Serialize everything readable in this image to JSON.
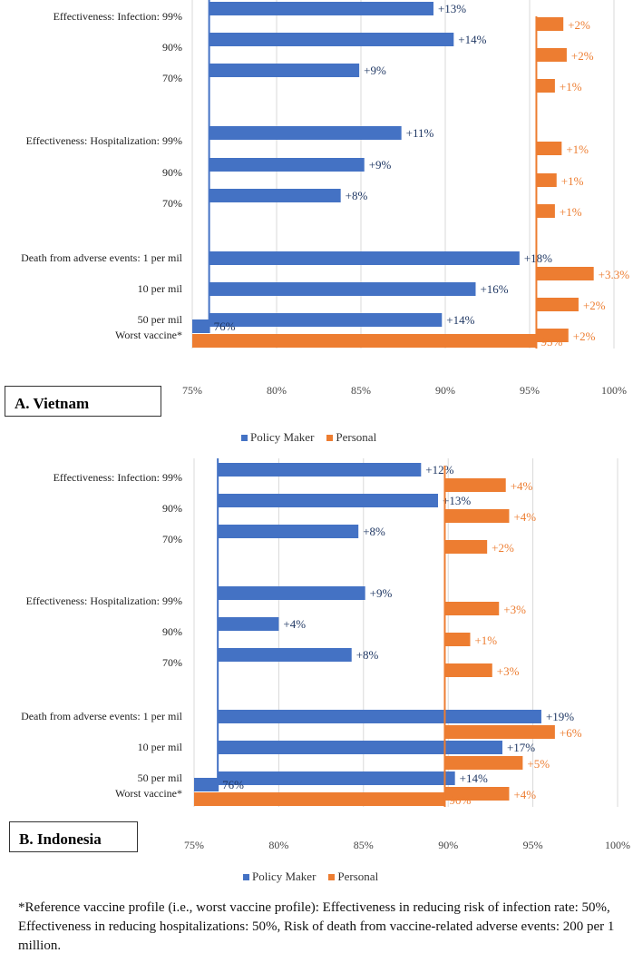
{
  "colors": {
    "policy_maker": "#4472C4",
    "personal": "#ED7D31",
    "pm_label": "#203864",
    "grid": "#D9D9D9"
  },
  "chart_data": [
    {
      "type": "bar",
      "orientation": "horizontal",
      "title": "A. Vietnam",
      "xlim": [
        75,
        100
      ],
      "xticks": [
        "75%",
        "80%",
        "85%",
        "90%",
        "95%",
        "100%"
      ],
      "legend": [
        "Policy Maker",
        "Personal"
      ],
      "legend_position": "bottom",
      "base": {
        "policy_maker": 76,
        "personal": 95.4
      },
      "rows": [
        {
          "category": "Effectiveness: Infection: 99%",
          "policy_maker": 89.3,
          "pm_label": "+13%",
          "personal": 97.0,
          "personal_label": "+2%"
        },
        {
          "category": "90%",
          "policy_maker": 90.5,
          "pm_label": "+14%",
          "personal": 97.2,
          "personal_label": "+2%"
        },
        {
          "category": "70%",
          "policy_maker": 84.9,
          "pm_label": "+9%",
          "personal": 96.5,
          "personal_label": "+1%"
        },
        {
          "category": "Effectiveness: Hospitalization: 99%",
          "policy_maker": 87.4,
          "pm_label": "+11%",
          "personal": 96.9,
          "personal_label": "+1%"
        },
        {
          "category": "90%",
          "policy_maker": 85.2,
          "pm_label": "+9%",
          "personal": 96.6,
          "personal_label": "+1%"
        },
        {
          "category": "70%",
          "policy_maker": 83.8,
          "pm_label": "+8%",
          "personal": 96.5,
          "personal_label": "+1%"
        },
        {
          "category": "Death from adverse events: 1 per mil",
          "policy_maker": 94.4,
          "pm_label": "+18%",
          "personal": 98.8,
          "personal_label": "+3.3%"
        },
        {
          "category": "10 per mil",
          "policy_maker": 91.8,
          "pm_label": "+16%",
          "personal": 97.9,
          "personal_label": "+2%"
        },
        {
          "category": "50 per mil",
          "policy_maker": 89.8,
          "pm_label": "+14%",
          "personal": 97.3,
          "personal_label": "+2%"
        },
        {
          "category": "Worst vaccine*",
          "policy_maker": 76,
          "pm_label": "76%",
          "personal": 95.4,
          "personal_label": "95%",
          "from_axis": true
        }
      ]
    },
    {
      "type": "bar",
      "orientation": "horizontal",
      "title": "B. Indonesia",
      "xlim": [
        75,
        100
      ],
      "xticks": [
        "75%",
        "80%",
        "85%",
        "90%",
        "95%",
        "100%"
      ],
      "legend": [
        "Policy Maker",
        "Personal"
      ],
      "legend_position": "bottom",
      "base": {
        "policy_maker": 76.4,
        "personal": 89.8
      },
      "rows": [
        {
          "category": "Effectiveness: Infection: 99%",
          "policy_maker": 88.4,
          "pm_label": "+12%",
          "personal": 93.4,
          "personal_label": "+4%"
        },
        {
          "category": "90%",
          "policy_maker": 89.4,
          "pm_label": "+13%",
          "personal": 93.6,
          "personal_label": "+4%"
        },
        {
          "category": "70%",
          "policy_maker": 84.7,
          "pm_label": "+8%",
          "personal": 92.3,
          "personal_label": "+2%"
        },
        {
          "category": "Effectiveness: Hospitalization: 99%",
          "policy_maker": 85.1,
          "pm_label": "+9%",
          "personal": 93.0,
          "personal_label": "+3%"
        },
        {
          "category": "90%",
          "policy_maker": 80.0,
          "pm_label": "+4%",
          "personal": 91.3,
          "personal_label": "+1%"
        },
        {
          "category": "70%",
          "policy_maker": 84.3,
          "pm_label": "+8%",
          "personal": 92.6,
          "personal_label": "+3%"
        },
        {
          "category": "Death from adverse events: 1 per mil",
          "policy_maker": 95.5,
          "pm_label": "+19%",
          "personal": 96.3,
          "personal_label": "+6%"
        },
        {
          "category": "10 per mil",
          "policy_maker": 93.2,
          "pm_label": "+17%",
          "personal": 94.4,
          "personal_label": "+5%"
        },
        {
          "category": "50 per mil",
          "policy_maker": 90.4,
          "pm_label": "+14%",
          "personal": 93.6,
          "personal_label": "+4%"
        },
        {
          "category": "Worst vaccine*",
          "policy_maker": 76.4,
          "pm_label": "76%",
          "personal": 89.8,
          "personal_label": "90%",
          "from_axis": true
        }
      ]
    }
  ],
  "footnote": "*Reference vaccine profile (i.e., worst vaccine profile): Effectiveness in reducing risk of infection rate: 50%, Effectiveness in reducing hospitalizations: 50%, Risk of death from vaccine-related adverse events: 200 per 1 million."
}
